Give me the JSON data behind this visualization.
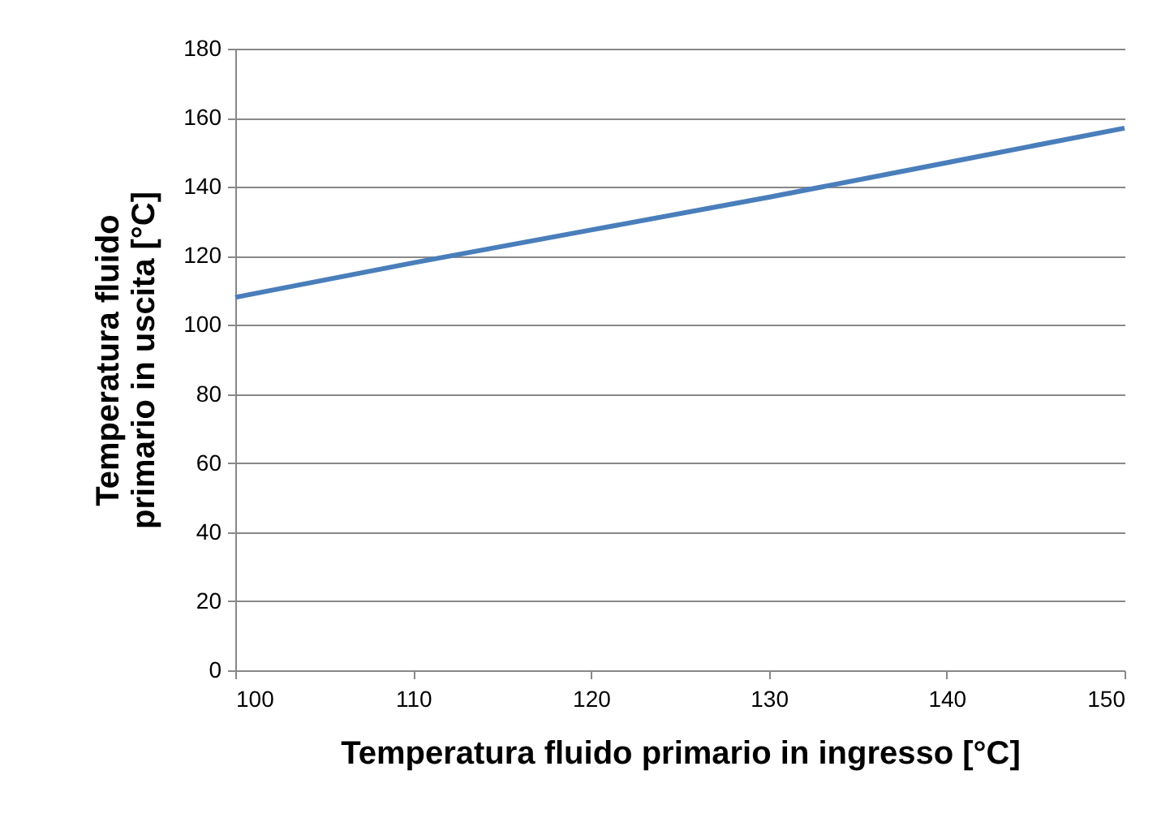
{
  "chart_data": {
    "type": "line",
    "xlabel": "Temperatura fluido primario in ingresso [°C]",
    "ylabel": "Temperatura fluido primario in uscita [°C]",
    "x": [
      100,
      110,
      120,
      130,
      140,
      150
    ],
    "series": [
      {
        "color": "#4a7ebb",
        "values": [
          108,
          118,
          127.5,
          137,
          147,
          157
        ]
      }
    ],
    "xlim": [
      100,
      150
    ],
    "xticks": [
      100,
      110,
      120,
      130,
      140,
      150
    ],
    "ylim": [
      0,
      180
    ],
    "yticks": [
      0,
      20,
      40,
      60,
      80,
      100,
      120,
      140,
      160,
      180
    ],
    "grid": "y",
    "legend": false,
    "marker": "none",
    "line_style": "solid"
  }
}
